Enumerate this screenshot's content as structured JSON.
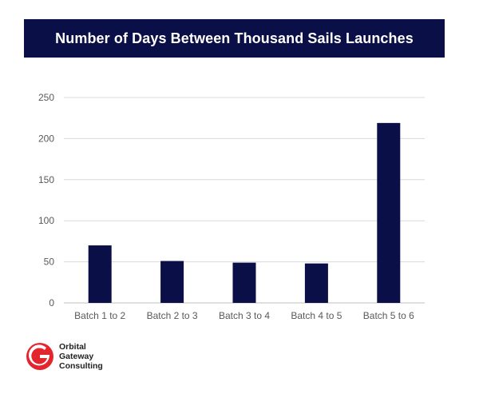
{
  "chart_data": {
    "type": "bar",
    "title": "Number of Days Between Thousand Sails Launches",
    "categories": [
      "Batch 1 to 2",
      "Batch 2 to 3",
      "Batch 3 to 4",
      "Batch 4 to 5",
      "Batch 5 to 6"
    ],
    "values": [
      70,
      51,
      49,
      48,
      219
    ],
    "ylim": [
      0,
      250
    ],
    "yticks": [
      0,
      50,
      100,
      150,
      200,
      250
    ],
    "xlabel": "",
    "ylabel": "",
    "grid": true,
    "legend": "none",
    "bar_color": "#0a1047"
  },
  "logo": {
    "lines": [
      "Orbital",
      "Gateway",
      "Consulting"
    ],
    "accent_color": "#e3262d"
  }
}
